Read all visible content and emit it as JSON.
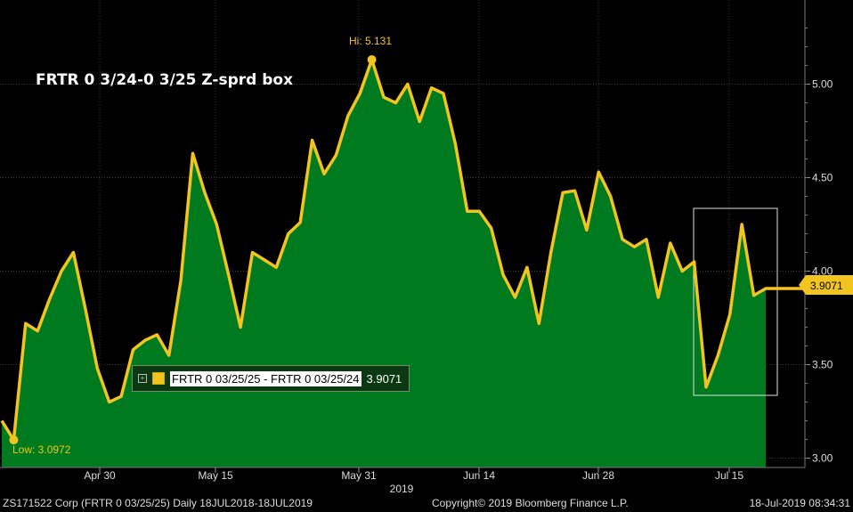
{
  "chart_data": {
    "type": "area",
    "title": "FRTR 0 3/24-0 3/25 Z-sprd box",
    "series": [
      {
        "name": "FRTR 0 03/25/25 - FRTR 0 03/25/24",
        "values": [
          3.2,
          3.0972,
          3.72,
          3.68,
          3.85,
          4.0,
          4.1,
          3.8,
          3.48,
          3.3,
          3.33,
          3.58,
          3.63,
          3.66,
          3.55,
          3.95,
          4.63,
          4.42,
          4.25,
          3.98,
          3.7,
          4.1,
          4.06,
          4.02,
          4.2,
          4.26,
          4.7,
          4.52,
          4.62,
          4.83,
          4.95,
          5.131,
          4.93,
          4.9,
          5.0,
          4.8,
          4.98,
          4.95,
          4.68,
          4.32,
          4.32,
          4.23,
          3.98,
          3.86,
          4.02,
          3.72,
          4.1,
          4.42,
          4.43,
          4.22,
          4.53,
          4.4,
          4.17,
          4.13,
          4.17,
          3.86,
          4.15,
          4.0,
          4.05,
          3.38,
          3.55,
          3.77,
          4.25,
          3.87,
          3.9071
        ]
      }
    ],
    "x_labels": [
      "Apr 30",
      "May 15",
      "May 31",
      "Jun 14",
      "Jun 28",
      "Jul 15"
    ],
    "x_year": "2019",
    "y_ticks": [
      "3.00",
      "3.50",
      "4.00",
      "4.50",
      "5.00"
    ],
    "ylim": [
      2.95,
      5.45
    ],
    "grid": true,
    "high_label": "Hi: 5.131",
    "low_label": "Low: 3.0972",
    "last_value": "3.9071",
    "legend_text": "FRTR 0 03/25/25 - FRTR 0 03/25/24",
    "legend_value": "3.9071",
    "colors": {
      "line": "#f2c41f",
      "area": "#007a1f",
      "grid": "#3a3a3a"
    }
  },
  "footer": {
    "left": "ZS171522 Corp (FRTR 0 03/25/25)  Daily 18JUL2018-18JUL2019",
    "center": "Copyright© 2019 Bloomberg Finance L.P.",
    "right": "18-Jul-2019 08:34:31"
  }
}
